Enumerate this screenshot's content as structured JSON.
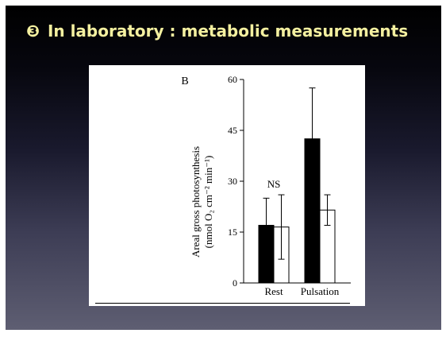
{
  "slide": {
    "number_glyph": "❸",
    "title": "In laboratory : metabolic measurements",
    "title_color": "#f4f0a0"
  },
  "chart_data": {
    "type": "bar",
    "panel_label": "B",
    "categories": [
      "Rest",
      "Pulsation"
    ],
    "series": [
      {
        "fill": "#000000",
        "values": [
          17,
          42.5
        ],
        "errors": [
          8,
          15
        ]
      },
      {
        "fill": "#ffffff",
        "values": [
          16.5,
          21.5
        ],
        "errors": [
          9.5,
          4.5
        ]
      }
    ],
    "ylabel_line1": "Areal gross photosynthesis",
    "ylabel_line2": "(nmol O₂ cm⁻² min⁻¹)",
    "ylim": [
      0,
      60
    ],
    "yticks": [
      0,
      15,
      30,
      45,
      60
    ],
    "annotations": [
      {
        "category": "Rest",
        "text": "NS"
      }
    ],
    "grid": false
  }
}
